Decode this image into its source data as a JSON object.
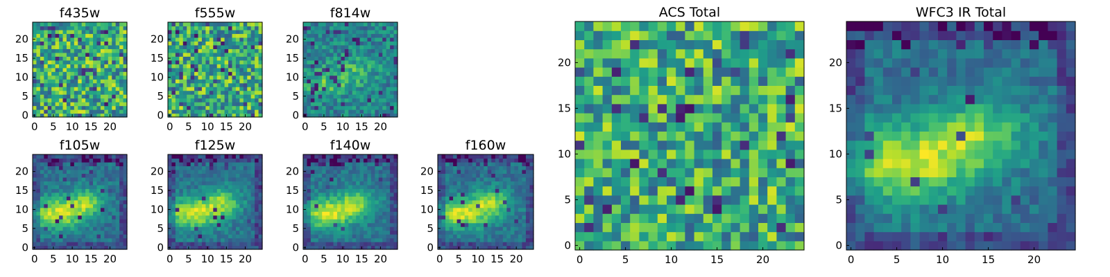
{
  "chart_data": {
    "type": "heatmap",
    "colormap": "viridis",
    "panels": [
      {
        "title": "f435w",
        "xlim": [
          0,
          25
        ],
        "ylim": [
          0,
          25
        ],
        "xticks": [
          0,
          5,
          10,
          15,
          20
        ],
        "yticks": [
          0,
          5,
          10,
          15,
          20
        ],
        "pattern": "noise"
      },
      {
        "title": "f555w",
        "xlim": [
          0,
          25
        ],
        "ylim": [
          0,
          25
        ],
        "xticks": [
          0,
          5,
          10,
          15,
          20
        ],
        "yticks": [
          0,
          5,
          10,
          15,
          20
        ],
        "pattern": "noise"
      },
      {
        "title": "f814w",
        "xlim": [
          0,
          25
        ],
        "ylim": [
          0,
          25
        ],
        "xticks": [
          0,
          5,
          10,
          15,
          20
        ],
        "yticks": [
          0,
          5,
          10,
          15,
          20
        ],
        "pattern": "weak-blob"
      },
      {
        "title": "f105w",
        "xlim": [
          0,
          25
        ],
        "ylim": [
          0,
          25
        ],
        "xticks": [
          0,
          5,
          10,
          15,
          20
        ],
        "yticks": [
          0,
          5,
          10,
          15,
          20
        ],
        "pattern": "blob"
      },
      {
        "title": "f125w",
        "xlim": [
          0,
          25
        ],
        "ylim": [
          0,
          25
        ],
        "xticks": [
          0,
          5,
          10,
          15,
          20
        ],
        "yticks": [
          0,
          5,
          10,
          15,
          20
        ],
        "pattern": "blob"
      },
      {
        "title": "f140w",
        "xlim": [
          0,
          25
        ],
        "ylim": [
          0,
          25
        ],
        "xticks": [
          0,
          5,
          10,
          15,
          20
        ],
        "yticks": [
          0,
          5,
          10,
          15,
          20
        ],
        "pattern": "blob"
      },
      {
        "title": "f160w",
        "xlim": [
          0,
          25
        ],
        "ylim": [
          0,
          25
        ],
        "xticks": [
          0,
          5,
          10,
          15,
          20
        ],
        "yticks": [
          0,
          5,
          10,
          15,
          20
        ],
        "pattern": "blob"
      },
      {
        "title": "ACS Total",
        "xlim": [
          0,
          25
        ],
        "ylim": [
          0,
          25
        ],
        "xticks": [
          0,
          5,
          10,
          15,
          20
        ],
        "yticks": [
          0,
          5,
          10,
          15,
          20
        ],
        "pattern": "noise"
      },
      {
        "title": "WFC3 IR Total",
        "xlim": [
          0,
          25
        ],
        "ylim": [
          0,
          25
        ],
        "xticks": [
          0,
          5,
          10,
          15,
          20
        ],
        "yticks": [
          0,
          5,
          10,
          15,
          20
        ],
        "pattern": "blob"
      }
    ]
  }
}
